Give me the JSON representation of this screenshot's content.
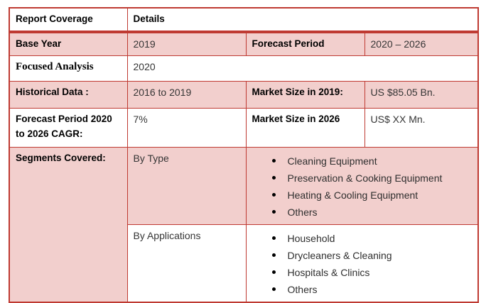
{
  "colors": {
    "border_red": "#bf3a32",
    "row_fill_pink": "#f2cfcd"
  },
  "table": {
    "header": {
      "report_coverage": "Report Coverage",
      "details": "Details"
    },
    "rows": {
      "base_year": {
        "label": "Base Year",
        "value": "2019",
        "label2": "Forecast Period",
        "value2": "2020 – 2026"
      },
      "focused_analysis": {
        "label": "Focused Analysis",
        "value": "2020"
      },
      "historical_data": {
        "label": "Historical Data :",
        "value": "2016 to 2019",
        "label2": "Market Size in 2019:",
        "value2": "US $85.05 Bn."
      },
      "forecast_cagr": {
        "label": "Forecast Period 2020 to 2026 CAGR:",
        "value": "7%",
        "label2": "Market Size in 2026",
        "value2": "US$ XX Mn."
      },
      "segments": {
        "label": "Segments Covered:",
        "by_type": {
          "label": "By Type",
          "items": [
            "Cleaning Equipment",
            "Preservation & Cooking Equipment",
            "Heating & Cooling Equipment",
            "Others"
          ]
        },
        "by_applications": {
          "label": "By Applications",
          "items": [
            "Household",
            "Drycleaners & Cleaning",
            "Hospitals & Clinics",
            "Others"
          ]
        }
      }
    }
  }
}
